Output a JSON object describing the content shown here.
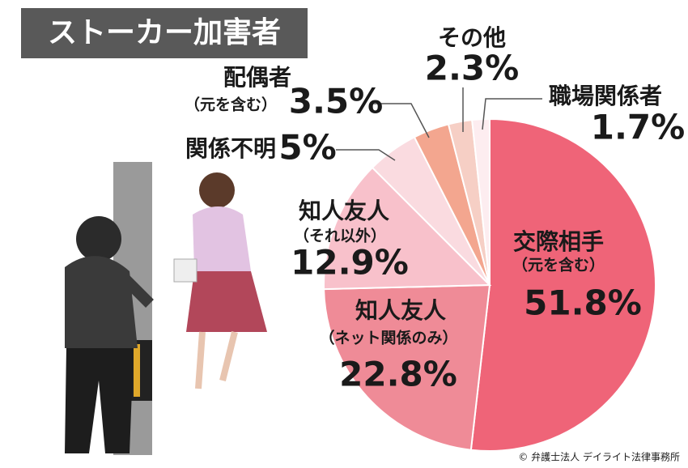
{
  "chart_data": {
    "type": "pie",
    "title": "ストーカー加害者",
    "categories": [
      "交際相手",
      "知人友人",
      "知人友人",
      "関係不明",
      "配偶者",
      "その他",
      "職場関係者"
    ],
    "sublabels": [
      "（元を含む）",
      "（ネット関係のみ）",
      "（それ以外）",
      null,
      "（元を含む）",
      null,
      null
    ],
    "values": [
      51.8,
      22.8,
      12.9,
      5,
      3.5,
      2.3,
      1.7
    ],
    "value_labels": [
      "51.8%",
      "22.8%",
      "12.9%",
      "5%",
      "3.5%",
      "2.3%",
      "1.7%"
    ],
    "colors": [
      "#ef6478",
      "#ef8b97",
      "#f8c1cb",
      "#fadbe0",
      "#f3a68f",
      "#f6cfc5",
      "#fdedf0"
    ],
    "credit": "© 弁護士法人 デイライト法律事務所"
  }
}
